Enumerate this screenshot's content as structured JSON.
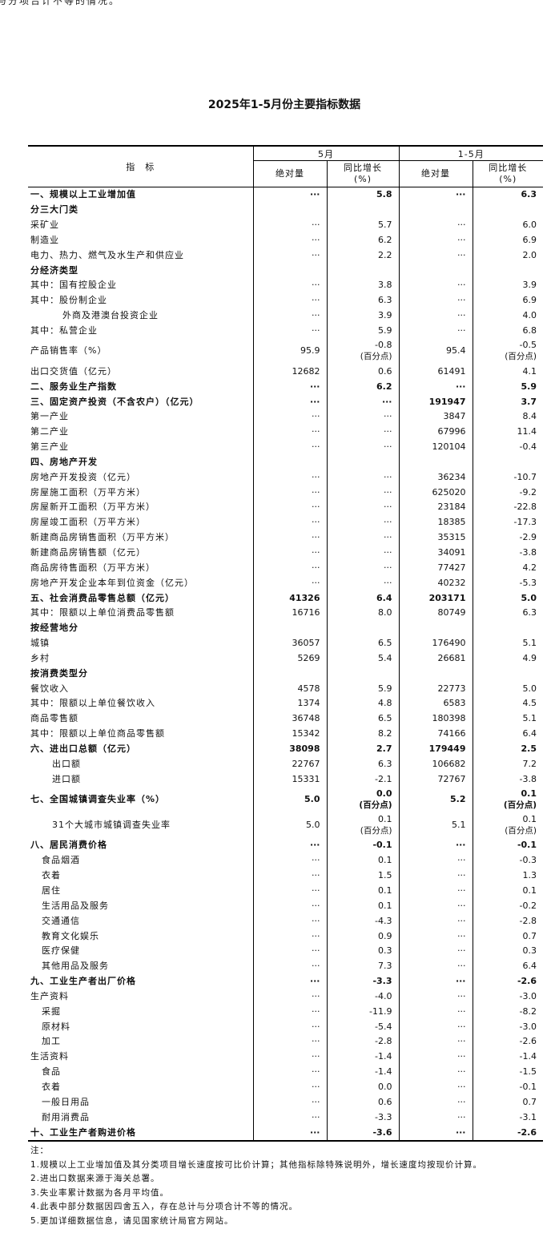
{
  "top_fragment": "与分项合计不等的情况。",
  "title": "2025年1-5月份主要指标数据",
  "header": {
    "indicator": "指　标",
    "period_month": "5月",
    "period_cum": "1-5月",
    "abs": "绝对量",
    "yoy": "同比增长",
    "yoy_unit": "(%)"
  },
  "rows": [
    {
      "label": "一、规模以上工业增加值",
      "m_abs": "···",
      "m_yoy": "5.8",
      "c_abs": "···",
      "c_yoy": "6.3",
      "style": "bold",
      "indent": 0
    },
    {
      "label": "分三大门类",
      "style": "bold",
      "indent": 0
    },
    {
      "label": "采矿业",
      "m_abs": "···",
      "m_yoy": "5.7",
      "c_abs": "···",
      "c_yoy": "6.0",
      "indent": 0
    },
    {
      "label": "制造业",
      "m_abs": "···",
      "m_yoy": "6.2",
      "c_abs": "···",
      "c_yoy": "6.9",
      "indent": 0
    },
    {
      "label": "电力、热力、燃气及水生产和供应业",
      "m_abs": "···",
      "m_yoy": "2.2",
      "c_abs": "···",
      "c_yoy": "2.0",
      "indent": 0
    },
    {
      "label": "分经济类型",
      "style": "bold",
      "indent": 0
    },
    {
      "label": "其中：国有控股企业",
      "m_abs": "···",
      "m_yoy": "3.8",
      "c_abs": "···",
      "c_yoy": "3.9",
      "indent": 0
    },
    {
      "label": "其中：股份制企业",
      "m_abs": "···",
      "m_yoy": "6.3",
      "c_abs": "···",
      "c_yoy": "6.9",
      "indent": 0
    },
    {
      "label": "外商及港澳台投资企业",
      "m_abs": "···",
      "m_yoy": "3.9",
      "c_abs": "···",
      "c_yoy": "4.0",
      "indent": 3
    },
    {
      "label": "其中：私营企业",
      "m_abs": "···",
      "m_yoy": "5.9",
      "c_abs": "···",
      "c_yoy": "6.8",
      "indent": 0
    },
    {
      "label": "产品销售率（%）",
      "m_abs": "95.9",
      "m_yoy": "-0.8",
      "m_yoy_note": "(百分点)",
      "c_abs": "95.4",
      "c_yoy": "-0.5",
      "c_yoy_note": "(百分点)",
      "indent": 0,
      "double": true
    },
    {
      "label": "出口交货值（亿元）",
      "m_abs": "12682",
      "m_yoy": "0.6",
      "c_abs": "61491",
      "c_yoy": "4.1",
      "indent": 0
    },
    {
      "label": "二、服务业生产指数",
      "m_abs": "···",
      "m_yoy": "6.2",
      "c_abs": "···",
      "c_yoy": "5.9",
      "style": "bold",
      "indent": 0
    },
    {
      "label": "三、固定资产投资（不含农户）（亿元）",
      "m_abs": "···",
      "m_yoy": "···",
      "c_abs": "191947",
      "c_yoy": "3.7",
      "style": "bold",
      "indent": 0
    },
    {
      "label": "第一产业",
      "m_abs": "···",
      "m_yoy": "···",
      "c_abs": "3847",
      "c_yoy": "8.4",
      "indent": 0
    },
    {
      "label": "第二产业",
      "m_abs": "···",
      "m_yoy": "···",
      "c_abs": "67996",
      "c_yoy": "11.4",
      "indent": 0
    },
    {
      "label": "第三产业",
      "m_abs": "···",
      "m_yoy": "···",
      "c_abs": "120104",
      "c_yoy": "-0.4",
      "indent": 0
    },
    {
      "label": "四、房地产开发",
      "style": "bold",
      "indent": 0
    },
    {
      "label": "房地产开发投资（亿元）",
      "m_abs": "···",
      "m_yoy": "···",
      "c_abs": "36234",
      "c_yoy": "-10.7",
      "indent": 0
    },
    {
      "label": "房屋施工面积（万平方米）",
      "m_abs": "···",
      "m_yoy": "···",
      "c_abs": "625020",
      "c_yoy": "-9.2",
      "indent": 0
    },
    {
      "label": "房屋新开工面积（万平方米）",
      "m_abs": "···",
      "m_yoy": "···",
      "c_abs": "23184",
      "c_yoy": "-22.8",
      "indent": 0
    },
    {
      "label": "房屋竣工面积（万平方米）",
      "m_abs": "···",
      "m_yoy": "···",
      "c_abs": "18385",
      "c_yoy": "-17.3",
      "indent": 0
    },
    {
      "label": "新建商品房销售面积（万平方米）",
      "m_abs": "···",
      "m_yoy": "···",
      "c_abs": "35315",
      "c_yoy": "-2.9",
      "indent": 0
    },
    {
      "label": "新建商品房销售额（亿元）",
      "m_abs": "···",
      "m_yoy": "···",
      "c_abs": "34091",
      "c_yoy": "-3.8",
      "indent": 0
    },
    {
      "label": "商品房待售面积（万平方米）",
      "m_abs": "···",
      "m_yoy": "···",
      "c_abs": "77427",
      "c_yoy": "4.2",
      "indent": 0
    },
    {
      "label": "房地产开发企业本年到位资金（亿元）",
      "m_abs": "···",
      "m_yoy": "···",
      "c_abs": "40232",
      "c_yoy": "-5.3",
      "indent": 0
    },
    {
      "label": "五、社会消费品零售总额（亿元）",
      "m_abs": "41326",
      "m_yoy": "6.4",
      "c_abs": "203171",
      "c_yoy": "5.0",
      "style": "bold",
      "indent": 0
    },
    {
      "label": "其中：限额以上单位消费品零售额",
      "m_abs": "16716",
      "m_yoy": "8.0",
      "c_abs": "80749",
      "c_yoy": "6.3",
      "indent": 0
    },
    {
      "label": "按经营地分",
      "style": "bold",
      "indent": 0
    },
    {
      "label": "城镇",
      "m_abs": "36057",
      "m_yoy": "6.5",
      "c_abs": "176490",
      "c_yoy": "5.1",
      "indent": 0
    },
    {
      "label": "乡村",
      "m_abs": "5269",
      "m_yoy": "5.4",
      "c_abs": "26681",
      "c_yoy": "4.9",
      "indent": 0
    },
    {
      "label": "按消费类型分",
      "style": "bold",
      "indent": 0
    },
    {
      "label": "餐饮收入",
      "m_abs": "4578",
      "m_yoy": "5.9",
      "c_abs": "22773",
      "c_yoy": "5.0",
      "indent": 0
    },
    {
      "label": "其中：限额以上单位餐饮收入",
      "m_abs": "1374",
      "m_yoy": "4.8",
      "c_abs": "6583",
      "c_yoy": "4.5",
      "indent": 0
    },
    {
      "label": "商品零售额",
      "m_abs": "36748",
      "m_yoy": "6.5",
      "c_abs": "180398",
      "c_yoy": "5.1",
      "indent": 0
    },
    {
      "label": "其中：限额以上单位商品零售额",
      "m_abs": "15342",
      "m_yoy": "8.2",
      "c_abs": "74166",
      "c_yoy": "6.4",
      "indent": 0
    },
    {
      "label": "六、进出口总额（亿元）",
      "m_abs": "38098",
      "m_yoy": "2.7",
      "c_abs": "179449",
      "c_yoy": "2.5",
      "style": "bold",
      "indent": 0
    },
    {
      "label": "出口额",
      "m_abs": "22767",
      "m_yoy": "6.3",
      "c_abs": "106682",
      "c_yoy": "7.2",
      "indent": 2
    },
    {
      "label": "进口额",
      "m_abs": "15331",
      "m_yoy": "-2.1",
      "c_abs": "72767",
      "c_yoy": "-3.8",
      "indent": 2
    },
    {
      "label": "七、全国城镇调查失业率（%）",
      "m_abs": "5.0",
      "m_yoy": "0.0",
      "m_yoy_note": "(百分点)",
      "c_abs": "5.2",
      "c_yoy": "0.1",
      "c_yoy_note": "(百分点)",
      "style": "bold",
      "indent": 0,
      "double": true
    },
    {
      "label": "31个大城市城镇调查失业率",
      "m_abs": "5.0",
      "m_yoy": "0.1",
      "m_yoy_note": "(百分点)",
      "c_abs": "5.1",
      "c_yoy": "0.1",
      "c_yoy_note": "(百分点)",
      "indent": 2,
      "double": true
    },
    {
      "label": "八、居民消费价格",
      "m_abs": "···",
      "m_yoy": "-0.1",
      "c_abs": "···",
      "c_yoy": "-0.1",
      "style": "bold",
      "indent": 0
    },
    {
      "label": "食品烟酒",
      "m_abs": "···",
      "m_yoy": "0.1",
      "c_abs": "···",
      "c_yoy": "-0.3",
      "indent": 1
    },
    {
      "label": "衣着",
      "m_abs": "···",
      "m_yoy": "1.5",
      "c_abs": "···",
      "c_yoy": "1.3",
      "indent": 1
    },
    {
      "label": "居住",
      "m_abs": "···",
      "m_yoy": "0.1",
      "c_abs": "···",
      "c_yoy": "0.1",
      "indent": 1
    },
    {
      "label": "生活用品及服务",
      "m_abs": "···",
      "m_yoy": "0.1",
      "c_abs": "···",
      "c_yoy": "-0.2",
      "indent": 1
    },
    {
      "label": "交通通信",
      "m_abs": "···",
      "m_yoy": "-4.3",
      "c_abs": "···",
      "c_yoy": "-2.8",
      "indent": 1
    },
    {
      "label": "教育文化娱乐",
      "m_abs": "···",
      "m_yoy": "0.9",
      "c_abs": "···",
      "c_yoy": "0.7",
      "indent": 1
    },
    {
      "label": "医疗保健",
      "m_abs": "···",
      "m_yoy": "0.3",
      "c_abs": "···",
      "c_yoy": "0.3",
      "indent": 1
    },
    {
      "label": "其他用品及服务",
      "m_abs": "···",
      "m_yoy": "7.3",
      "c_abs": "···",
      "c_yoy": "6.4",
      "indent": 1
    },
    {
      "label": "九、工业生产者出厂价格",
      "m_abs": "···",
      "m_yoy": "-3.3",
      "c_abs": "···",
      "c_yoy": "-2.6",
      "style": "bold",
      "indent": 0
    },
    {
      "label": "生产资料",
      "m_abs": "···",
      "m_yoy": "-4.0",
      "c_abs": "···",
      "c_yoy": "-3.0",
      "indent": 0
    },
    {
      "label": "采掘",
      "m_abs": "···",
      "m_yoy": "-11.9",
      "c_abs": "···",
      "c_yoy": "-8.2",
      "indent": 1
    },
    {
      "label": "原材料",
      "m_abs": "···",
      "m_yoy": "-5.4",
      "c_abs": "···",
      "c_yoy": "-3.0",
      "indent": 1
    },
    {
      "label": "加工",
      "m_abs": "···",
      "m_yoy": "-2.8",
      "c_abs": "···",
      "c_yoy": "-2.6",
      "indent": 1
    },
    {
      "label": "生活资料",
      "m_abs": "···",
      "m_yoy": "-1.4",
      "c_abs": "···",
      "c_yoy": "-1.4",
      "indent": 0
    },
    {
      "label": "食品",
      "m_abs": "···",
      "m_yoy": "-1.4",
      "c_abs": "···",
      "c_yoy": "-1.5",
      "indent": 1
    },
    {
      "label": "衣着",
      "m_abs": "···",
      "m_yoy": "0.0",
      "c_abs": "···",
      "c_yoy": "-0.1",
      "indent": 1
    },
    {
      "label": "一般日用品",
      "m_abs": "···",
      "m_yoy": "0.6",
      "c_abs": "···",
      "c_yoy": "0.7",
      "indent": 1
    },
    {
      "label": "耐用消费品",
      "m_abs": "···",
      "m_yoy": "-3.3",
      "c_abs": "···",
      "c_yoy": "-3.1",
      "indent": 1
    },
    {
      "label": "十、工业生产者购进价格",
      "m_abs": "···",
      "m_yoy": "-3.6",
      "c_abs": "···",
      "c_yoy": "-2.6",
      "style": "bold",
      "indent": 0
    }
  ],
  "notes": {
    "heading": "注：",
    "items": [
      "1.规模以上工业增加值及其分类项目增长速度按可比价计算；其他指标除特殊说明外，增长速度均按现价计算。",
      "2.进出口数据来源于海关总署。",
      "3.失业率累计数据为各月平均值。",
      "4.此表中部分数据因四舍五入，存在总计与分项合计不等的情况。",
      "5.更加详细数据信息，请见国家统计局官方网站。"
    ]
  }
}
